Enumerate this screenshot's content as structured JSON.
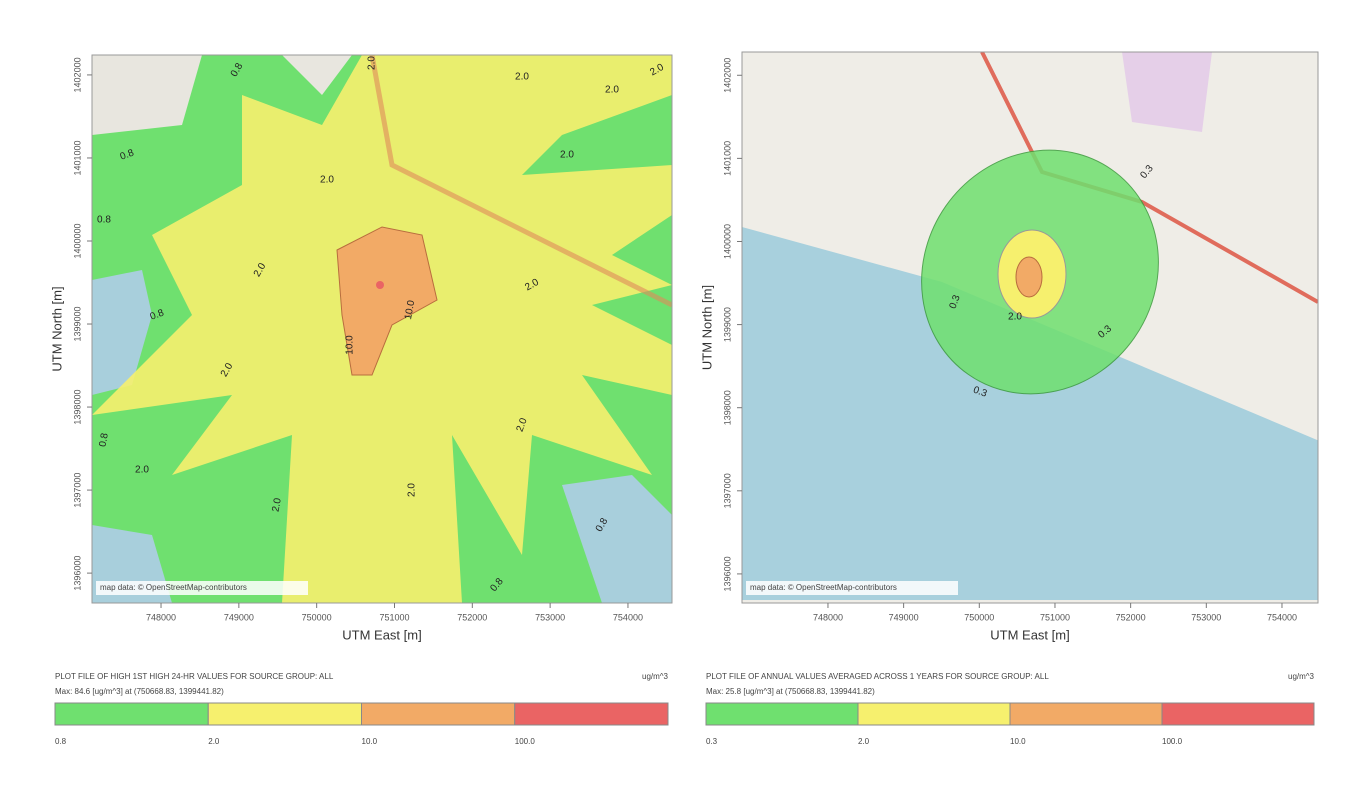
{
  "panels": [
    {
      "x_axis_label": "UTM East [m]",
      "y_axis_label": "UTM North [m]",
      "xlim": [
        747113,
        754566
      ],
      "ylim": [
        1395640,
        1402240
      ],
      "xticks": [
        748000,
        749000,
        750000,
        751000,
        752000,
        753000,
        754000
      ],
      "yticks": [
        1396000,
        1397000,
        1398000,
        1399000,
        1400000,
        1401000,
        1402000
      ],
      "attribution": "map data: © OpenStreetMap-contributors",
      "contour_labels": [
        "0.8",
        "2.0",
        "2.0",
        "2.0",
        "2.0",
        "0.8",
        "2.0",
        "2.0",
        "0.8",
        "2.0",
        "2.0",
        "10.0",
        "10.0",
        "0.8",
        "2.0",
        "2.0",
        "0.8",
        "2.0",
        "2.0",
        "2.0",
        "0.8",
        "0.8"
      ],
      "legend": {
        "title": "PLOT FILE OF HIGH 1ST HIGH 24-HR VALUES FOR SOURCE GROUP: ALL",
        "max": "Max: 84.6 [ug/m^3] at (750668.83, 1399441.82)",
        "unit": "ug/m^3",
        "colors": [
          "#6fe06f",
          "#f6f06e",
          "#f2aa66",
          "#ea6464"
        ],
        "breaks": [
          "0.8",
          "2.0",
          "10.0",
          "100.0"
        ]
      }
    },
    {
      "x_axis_label": "UTM East [m]",
      "y_axis_label": "UTM North [m]",
      "xlim": [
        746864,
        754476
      ],
      "ylim": [
        1395650,
        1402280
      ],
      "xticks": [
        748000,
        749000,
        750000,
        751000,
        752000,
        753000,
        754000
      ],
      "yticks": [
        1396000,
        1397000,
        1398000,
        1399000,
        1400000,
        1401000,
        1402000
      ],
      "attribution": "map data: © OpenStreetMap-contributors",
      "contour_labels": [
        "0.3",
        "0.3",
        "2.0",
        "0.3",
        "0.3"
      ],
      "legend": {
        "title": "PLOT FILE OF ANNUAL VALUES AVERAGED ACROSS 1 YEARS FOR SOURCE GROUP: ALL",
        "max": "Max: 25.8 [ug/m^3] at (750668.83, 1399441.82)",
        "unit": "ug/m^3",
        "colors": [
          "#6fe06f",
          "#f6f06e",
          "#f2aa66",
          "#ea6464"
        ],
        "breaks": [
          "0.3",
          "2.0",
          "10.0",
          "100.0"
        ]
      }
    }
  ]
}
